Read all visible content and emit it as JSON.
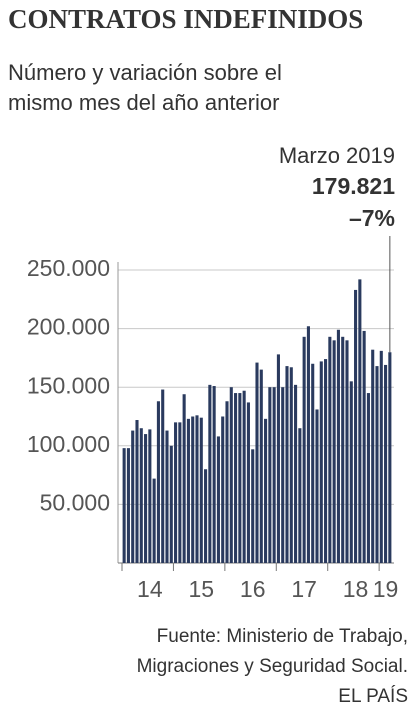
{
  "chart_data": {
    "type": "bar",
    "title": "CONTRATOS INDEFINIDOS",
    "subtitle": [
      "Número y variación sobre el",
      "mismo mes  del año anterior"
    ],
    "annotation": {
      "period": "Marzo 2019",
      "value": "179.821",
      "change": "–7%"
    },
    "source": [
      "Fuente: Ministerio de Trabajo,",
      "Migraciones y Seguridad Social.",
      "EL PAÍS"
    ],
    "categories": [
      null,
      null,
      null,
      null,
      null,
      null,
      "14",
      null,
      null,
      null,
      null,
      null,
      null,
      null,
      null,
      null,
      null,
      null,
      "15",
      null,
      null,
      null,
      null,
      null,
      null,
      null,
      null,
      null,
      null,
      null,
      "16",
      null,
      null,
      null,
      null,
      null,
      null,
      null,
      null,
      null,
      null,
      null,
      "17",
      null,
      null,
      null,
      null,
      null,
      null,
      null,
      null,
      null,
      null,
      null,
      "18",
      null,
      null,
      null,
      null,
      null,
      null,
      "19",
      null
    ],
    "values": [
      98000,
      98000,
      113000,
      122000,
      115000,
      110000,
      114000,
      72000,
      138000,
      148000,
      113000,
      100000,
      120000,
      120000,
      144000,
      123000,
      125000,
      126000,
      124000,
      80000,
      152000,
      151000,
      108000,
      125000,
      138000,
      150000,
      145000,
      145000,
      147000,
      137000,
      97000,
      171000,
      165000,
      123000,
      150000,
      150000,
      178000,
      150000,
      168000,
      167000,
      152000,
      115000,
      193000,
      202000,
      170000,
      131000,
      172000,
      174000,
      193000,
      190000,
      199000,
      193000,
      190000,
      155000,
      233000,
      242000,
      198000,
      145000,
      182000,
      168000,
      181000,
      169000,
      179821
    ],
    "color": "#2a3a5e",
    "ylim": [
      0,
      250000
    ],
    "yticks": [
      {
        "value": 50000,
        "label": "50.000"
      },
      {
        "value": 100000,
        "label": "100.000"
      },
      {
        "value": 150000,
        "label": "150.000"
      },
      {
        "value": 200000,
        "label": "200.000"
      },
      {
        "value": 250000,
        "label": "250.000"
      }
    ],
    "grid": true
  }
}
